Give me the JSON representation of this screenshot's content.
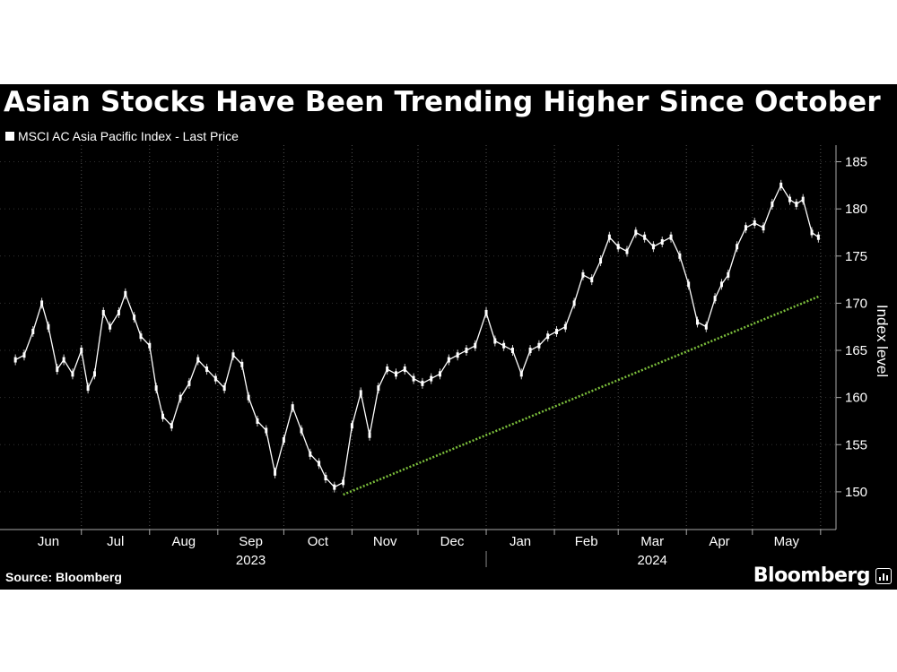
{
  "title": "Asian Stocks Have Been Trending Higher Since October",
  "legend_label": "MSCI AC Asia Pacific Index - Last Price",
  "source": "Source: Bloomberg",
  "brand": "Bloomberg",
  "colors": {
    "background": "#000000",
    "series": "#ffffff",
    "trendline": "#7cbf3c",
    "grid": "#555555"
  },
  "chart_data": {
    "type": "line",
    "title": "Asian Stocks Have Been Trending Higher Since October",
    "ylabel": "Index level",
    "ylim": [
      146,
      186
    ],
    "yticks": [
      150,
      155,
      160,
      165,
      170,
      175,
      180,
      185
    ],
    "month_labels": [
      "Jun",
      "Jul",
      "Aug",
      "Sep",
      "Oct",
      "Nov",
      "Dec",
      "Jan",
      "Feb",
      "Mar",
      "Apr",
      "May"
    ],
    "year_labels": [
      {
        "label": "2023",
        "under": "Sep"
      },
      {
        "label": "2024",
        "under": "Mar"
      }
    ],
    "grid": "vertical dotted",
    "legend_position": "top-left",
    "series": [
      {
        "name": "MSCI AC Asia Pacific Index - Last Price",
        "x": [
          "2023-06-01",
          "2023-06-05",
          "2023-06-09",
          "2023-06-13",
          "2023-06-16",
          "2023-06-20",
          "2023-06-23",
          "2023-06-27",
          "2023-07-01",
          "2023-07-04",
          "2023-07-07",
          "2023-07-11",
          "2023-07-14",
          "2023-07-18",
          "2023-07-21",
          "2023-07-25",
          "2023-07-28",
          "2023-08-01",
          "2023-08-04",
          "2023-08-07",
          "2023-08-11",
          "2023-08-15",
          "2023-08-19",
          "2023-08-23",
          "2023-08-27",
          "2023-08-31",
          "2023-09-04",
          "2023-09-08",
          "2023-09-12",
          "2023-09-15",
          "2023-09-19",
          "2023-09-23",
          "2023-09-27",
          "2023-10-01",
          "2023-10-05",
          "2023-10-09",
          "2023-10-13",
          "2023-10-17",
          "2023-10-20",
          "2023-10-24",
          "2023-10-28",
          "2023-11-01",
          "2023-11-05",
          "2023-11-09",
          "2023-11-13",
          "2023-11-17",
          "2023-11-21",
          "2023-11-25",
          "2023-11-29",
          "2023-12-03",
          "2023-12-07",
          "2023-12-11",
          "2023-12-15",
          "2023-12-19",
          "2023-12-23",
          "2023-12-27",
          "2024-01-01",
          "2024-01-05",
          "2024-01-09",
          "2024-01-13",
          "2024-01-17",
          "2024-01-21",
          "2024-01-25",
          "2024-01-29",
          "2024-02-02",
          "2024-02-06",
          "2024-02-10",
          "2024-02-14",
          "2024-02-18",
          "2024-02-22",
          "2024-02-26",
          "2024-03-01",
          "2024-03-05",
          "2024-03-09",
          "2024-03-13",
          "2024-03-17",
          "2024-03-21",
          "2024-03-25",
          "2024-03-29",
          "2024-04-02",
          "2024-04-06",
          "2024-04-10",
          "2024-04-14",
          "2024-04-17",
          "2024-04-20",
          "2024-04-24",
          "2024-04-28",
          "2024-05-02",
          "2024-05-06",
          "2024-05-10",
          "2024-05-14",
          "2024-05-18",
          "2024-05-21",
          "2024-05-24",
          "2024-05-28",
          "2024-05-31"
        ],
        "values": [
          164,
          164.5,
          167,
          170,
          167.5,
          163,
          164,
          162.5,
          165,
          161,
          162.5,
          169,
          167.5,
          169,
          171,
          168.5,
          166.5,
          165.5,
          161,
          158,
          157,
          160,
          161.5,
          164,
          163,
          162,
          161,
          164.5,
          163.5,
          160,
          157.5,
          156.5,
          152,
          155.5,
          159,
          156.5,
          154,
          153,
          151.5,
          150.5,
          151,
          157,
          160.5,
          156,
          161,
          163,
          162.5,
          163,
          162,
          161.5,
          162,
          162.5,
          164,
          164.5,
          165,
          165.5,
          169,
          166,
          165.5,
          165,
          162.5,
          165,
          165.5,
          166.5,
          167,
          167.5,
          170,
          173,
          172.5,
          174.5,
          177,
          176,
          175.5,
          177.5,
          177,
          176,
          176.5,
          177,
          175,
          172,
          168,
          167.5,
          170.5,
          172,
          173,
          176,
          178,
          178.5,
          178,
          180.5,
          182.5,
          181,
          180.5,
          181,
          177.5,
          177
        ]
      },
      {
        "name": "Trendline",
        "x": [
          "2023-10-28",
          "2024-05-31"
        ],
        "values": [
          149.7,
          170.7
        ]
      }
    ]
  }
}
